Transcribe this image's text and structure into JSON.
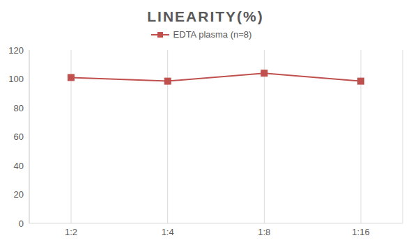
{
  "chart_data": {
    "type": "line",
    "title": "LINEARITY(%)",
    "categories": [
      "1:2",
      "1:4",
      "1:8",
      "1:16"
    ],
    "series": [
      {
        "name": "EDTA plasma (n=8)",
        "color": "#c0504d",
        "values": [
          101,
          98.5,
          104,
          98.5
        ],
        "marker": "square"
      }
    ],
    "ylim": [
      0,
      120
    ],
    "yticks": [
      0,
      20,
      40,
      60,
      80,
      100,
      120
    ],
    "grid": true,
    "legend": "top"
  }
}
